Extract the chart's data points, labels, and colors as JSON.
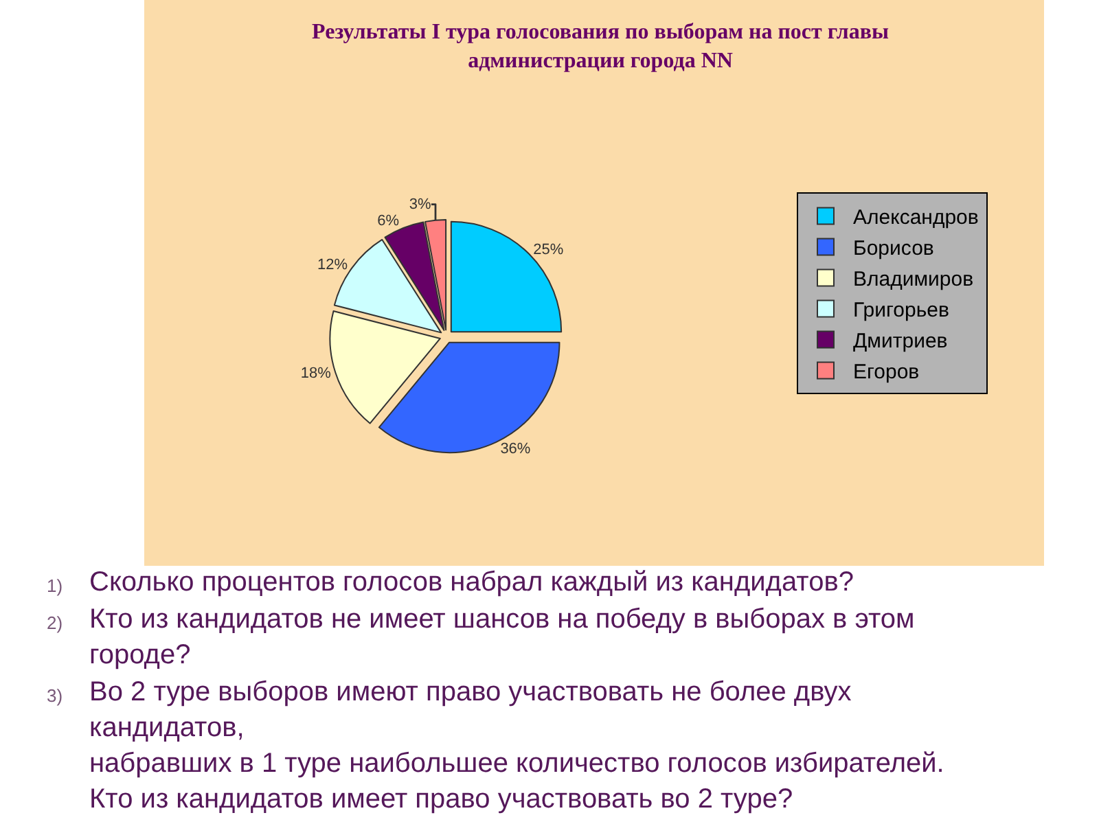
{
  "chart_data": {
    "type": "pie",
    "title": "Результаты I тура голосования по выборам на пост главы администрации города NN",
    "categories": [
      "Александров",
      "Борисов",
      "Владимиров",
      "Григорьев",
      "Дмитриев",
      "Егоров"
    ],
    "values": [
      25,
      36,
      18,
      12,
      6,
      3
    ],
    "value_labels": [
      "25%",
      "36%",
      "18%",
      "12%",
      "6%",
      "3%"
    ],
    "colors": [
      "#00ccff",
      "#3366ff",
      "#ffffcc",
      "#ccffff",
      "#660066",
      "#ff8080"
    ],
    "legend": "right",
    "annotations": [
      "1) Сколько процентов голосов набрал каждый из кандидатов?",
      "2) Кто из кандидатов не имеет шансов на победу в выборах в этом городе?",
      "3) Во 2 туре выборов имеют право участвовать не более двух кандидатов,\nнабравших в 1 туре наибольшее количество голосов избирателей.\nКто из кандидатов имеет право участвовать во 2 туре?"
    ]
  }
}
